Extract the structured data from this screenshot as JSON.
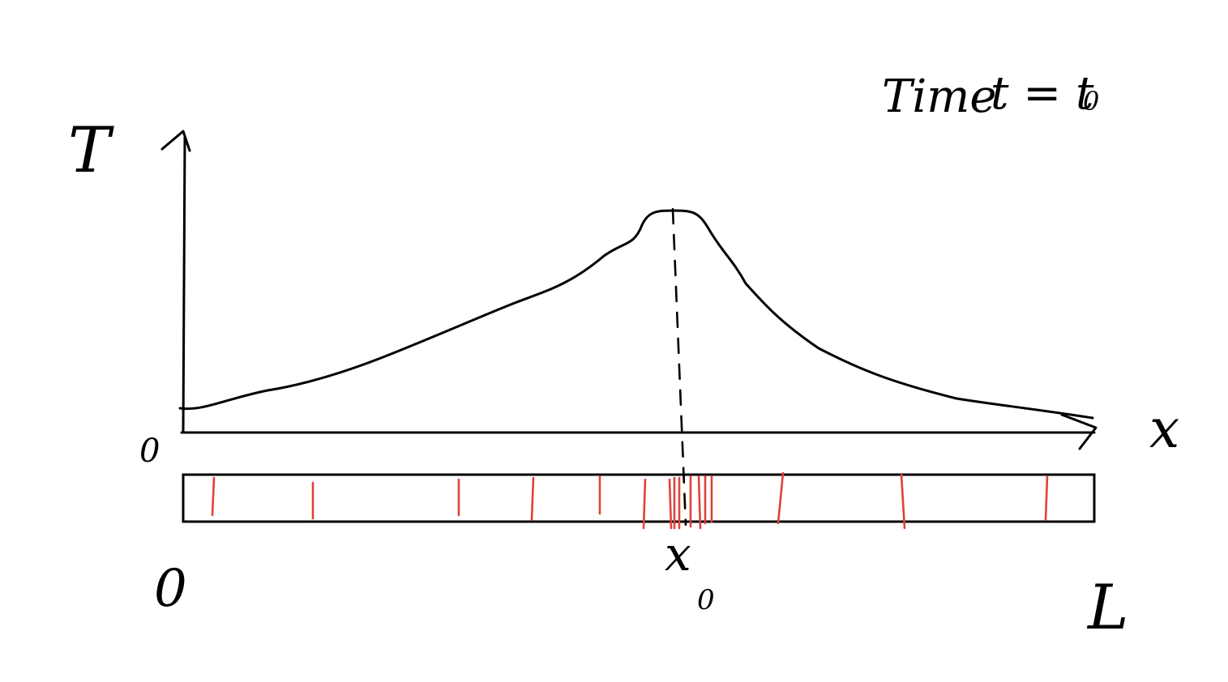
{
  "labels": {
    "y_axis": "T",
    "x_axis": "x",
    "graph_origin": "0",
    "rod_start": "0",
    "rod_end": "L",
    "x0_main": "x",
    "x0_sub": "0",
    "time_prefix": "Time",
    "time_eq": "t = t",
    "time_sub": "0"
  },
  "colors": {
    "ink": "#000000",
    "marks": "#e0413a",
    "background": "#ffffff"
  },
  "diagram": {
    "domain": [
      0,
      "L"
    ],
    "peak_at": "x_0"
  }
}
